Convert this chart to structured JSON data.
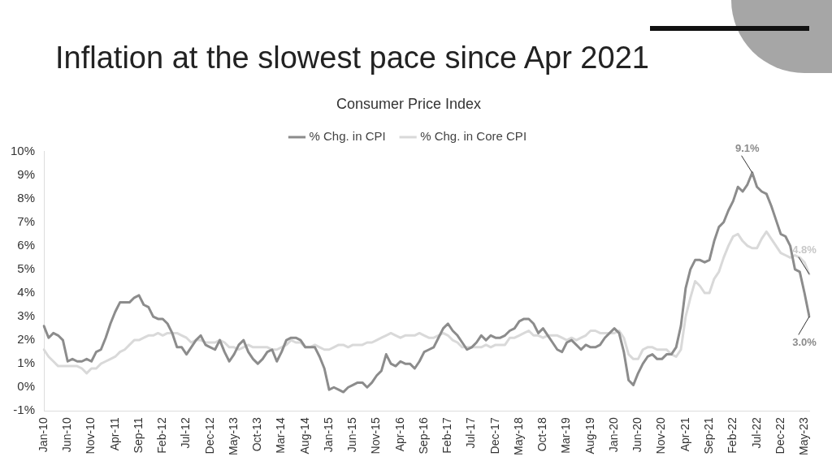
{
  "chart_data": {
    "type": "line",
    "title": "Inflation at the slowest pace since Apr 2021",
    "subtitle": "Consumer Price Index",
    "categories": [
      "Jan-10",
      null,
      null,
      null,
      null,
      "Jun-10",
      null,
      null,
      null,
      null,
      "Nov-10",
      null,
      null,
      null,
      null,
      "Apr-11",
      null,
      null,
      null,
      null,
      "Sep-11",
      null,
      null,
      null,
      null,
      "Feb-12",
      null,
      null,
      null,
      null,
      "Jul-12",
      null,
      null,
      null,
      null,
      "Dec-12",
      null,
      null,
      null,
      null,
      "May-13",
      null,
      null,
      null,
      null,
      "Oct-13",
      null,
      null,
      null,
      null,
      "Mar-14",
      null,
      null,
      null,
      null,
      "Aug-14",
      null,
      null,
      null,
      null,
      "Jan-15",
      null,
      null,
      null,
      null,
      "Jun-15",
      null,
      null,
      null,
      null,
      "Nov-15",
      null,
      null,
      null,
      null,
      "Apr-16",
      null,
      null,
      null,
      null,
      "Sep-16",
      null,
      null,
      null,
      null,
      "Feb-17",
      null,
      null,
      null,
      null,
      "Jul-17",
      null,
      null,
      null,
      null,
      "Dec-17",
      null,
      null,
      null,
      null,
      "May-18",
      null,
      null,
      null,
      null,
      "Oct-18",
      null,
      null,
      null,
      null,
      "Mar-19",
      null,
      null,
      null,
      null,
      "Aug-19",
      null,
      null,
      null,
      null,
      "Jan-20",
      null,
      null,
      null,
      null,
      "Jun-20",
      null,
      null,
      null,
      null,
      "Nov-20",
      null,
      null,
      null,
      null,
      "Apr-21",
      null,
      null,
      null,
      null,
      "Sep-21",
      null,
      null,
      null,
      null,
      "Feb-22",
      null,
      null,
      null,
      null,
      "Jul-22",
      null,
      null,
      null,
      null,
      "Dec-22",
      null,
      null,
      null,
      null,
      "May-23",
      null
    ],
    "series": [
      {
        "name": "% Chg. in CPI",
        "color": "#8c8c8c",
        "values": [
          2.6,
          2.1,
          2.3,
          2.2,
          2.0,
          1.1,
          1.2,
          1.1,
          1.1,
          1.2,
          1.1,
          1.5,
          1.6,
          2.1,
          2.7,
          3.2,
          3.6,
          3.6,
          3.6,
          3.8,
          3.9,
          3.5,
          3.4,
          3.0,
          2.9,
          2.9,
          2.7,
          2.3,
          1.7,
          1.7,
          1.4,
          1.7,
          2.0,
          2.2,
          1.8,
          1.7,
          1.6,
          2.0,
          1.5,
          1.1,
          1.4,
          1.8,
          2.0,
          1.5,
          1.2,
          1.0,
          1.2,
          1.5,
          1.6,
          1.1,
          1.5,
          2.0,
          2.1,
          2.1,
          2.0,
          1.7,
          1.7,
          1.7,
          1.3,
          0.8,
          -0.1,
          0.0,
          -0.1,
          -0.2,
          0.0,
          0.1,
          0.2,
          0.2,
          0.0,
          0.2,
          0.5,
          0.7,
          1.4,
          1.0,
          0.9,
          1.1,
          1.0,
          1.0,
          0.8,
          1.1,
          1.5,
          1.6,
          1.7,
          2.1,
          2.5,
          2.7,
          2.4,
          2.2,
          1.9,
          1.6,
          1.7,
          1.9,
          2.2,
          2.0,
          2.2,
          2.1,
          2.1,
          2.2,
          2.4,
          2.5,
          2.8,
          2.9,
          2.9,
          2.7,
          2.3,
          2.5,
          2.2,
          1.9,
          1.6,
          1.5,
          1.9,
          2.0,
          1.8,
          1.6,
          1.8,
          1.7,
          1.7,
          1.8,
          2.1,
          2.3,
          2.5,
          2.3,
          1.5,
          0.3,
          0.1,
          0.6,
          1.0,
          1.3,
          1.4,
          1.2,
          1.2,
          1.4,
          1.4,
          1.7,
          2.6,
          4.2,
          5.0,
          5.4,
          5.4,
          5.3,
          5.4,
          6.2,
          6.8,
          7.0,
          7.5,
          7.9,
          8.5,
          8.3,
          8.6,
          9.1,
          8.5,
          8.3,
          8.2,
          7.7,
          7.1,
          6.5,
          6.4,
          6.0,
          5.0,
          4.9,
          4.0,
          3.0
        ],
        "value_labels": [
          null,
          null,
          null,
          null,
          null,
          null,
          null,
          null,
          null,
          null,
          null,
          null,
          null,
          null,
          null,
          null,
          null,
          null,
          null,
          null,
          null,
          null,
          null,
          null,
          null,
          null,
          null,
          null,
          null,
          null,
          null,
          null,
          null,
          null,
          null,
          null,
          null,
          null,
          null,
          null,
          null,
          null,
          null,
          null,
          null,
          null,
          null,
          null,
          null,
          null,
          null,
          null,
          null,
          null,
          null,
          null,
          null,
          null,
          null,
          null,
          null,
          null,
          null,
          null,
          null,
          null,
          null,
          null,
          null,
          null,
          null,
          null,
          null,
          null,
          null,
          null,
          null,
          null,
          null,
          null,
          null,
          null,
          null,
          null,
          null,
          null,
          null,
          null,
          null,
          null,
          null,
          null,
          null,
          null,
          null,
          null,
          null,
          null,
          null,
          null,
          null,
          null,
          null,
          null,
          null,
          null,
          null,
          null,
          null,
          null,
          null,
          null,
          null,
          null,
          null,
          null,
          null,
          null,
          null,
          null,
          null,
          null,
          null,
          null,
          null,
          null,
          null,
          null,
          null,
          null,
          null,
          null,
          null,
          null,
          null,
          null,
          null,
          null,
          null,
          null,
          null,
          null,
          null,
          null,
          null,
          null,
          null,
          null,
          null,
          "9.1%",
          null,
          null,
          null,
          null,
          null,
          null,
          null,
          null,
          null,
          null,
          null,
          "3.0%"
        ]
      },
      {
        "name": "% Chg. in Core CPI",
        "color": "#d9d9d9",
        "values": [
          1.6,
          1.3,
          1.1,
          0.9,
          0.9,
          0.9,
          0.9,
          0.9,
          0.8,
          0.6,
          0.8,
          0.8,
          1.0,
          1.1,
          1.2,
          1.3,
          1.5,
          1.6,
          1.8,
          2.0,
          2.0,
          2.1,
          2.2,
          2.2,
          2.3,
          2.2,
          2.3,
          2.3,
          2.3,
          2.2,
          2.1,
          1.9,
          2.0,
          2.0,
          1.9,
          1.9,
          1.9,
          2.0,
          1.9,
          1.7,
          1.7,
          1.6,
          1.7,
          1.8,
          1.7,
          1.7,
          1.7,
          1.7,
          1.6,
          1.6,
          1.7,
          1.8,
          2.0,
          1.9,
          1.9,
          1.7,
          1.7,
          1.8,
          1.7,
          1.6,
          1.6,
          1.7,
          1.8,
          1.8,
          1.7,
          1.8,
          1.8,
          1.8,
          1.9,
          1.9,
          2.0,
          2.1,
          2.2,
          2.3,
          2.2,
          2.1,
          2.2,
          2.2,
          2.2,
          2.3,
          2.2,
          2.1,
          2.1,
          2.2,
          2.3,
          2.2,
          2.0,
          1.9,
          1.7,
          1.7,
          1.7,
          1.7,
          1.7,
          1.8,
          1.7,
          1.8,
          1.8,
          1.8,
          2.1,
          2.1,
          2.2,
          2.3,
          2.4,
          2.2,
          2.2,
          2.1,
          2.2,
          2.2,
          2.2,
          2.1,
          2.0,
          2.1,
          2.0,
          2.1,
          2.2,
          2.4,
          2.4,
          2.3,
          2.3,
          2.3,
          2.3,
          2.4,
          2.1,
          1.4,
          1.2,
          1.2,
          1.6,
          1.7,
          1.7,
          1.6,
          1.6,
          1.6,
          1.4,
          1.3,
          1.6,
          3.0,
          3.8,
          4.5,
          4.3,
          4.0,
          4.0,
          4.6,
          4.9,
          5.5,
          6.0,
          6.4,
          6.5,
          6.2,
          6.0,
          5.9,
          5.9,
          6.3,
          6.6,
          6.3,
          6.0,
          5.7,
          5.6,
          5.5,
          5.6,
          5.5,
          5.3,
          4.8
        ],
        "value_labels": [
          null,
          null,
          null,
          null,
          null,
          null,
          null,
          null,
          null,
          null,
          null,
          null,
          null,
          null,
          null,
          null,
          null,
          null,
          null,
          null,
          null,
          null,
          null,
          null,
          null,
          null,
          null,
          null,
          null,
          null,
          null,
          null,
          null,
          null,
          null,
          null,
          null,
          null,
          null,
          null,
          null,
          null,
          null,
          null,
          null,
          null,
          null,
          null,
          null,
          null,
          null,
          null,
          null,
          null,
          null,
          null,
          null,
          null,
          null,
          null,
          null,
          null,
          null,
          null,
          null,
          null,
          null,
          null,
          null,
          null,
          null,
          null,
          null,
          null,
          null,
          null,
          null,
          null,
          null,
          null,
          null,
          null,
          null,
          null,
          null,
          null,
          null,
          null,
          null,
          null,
          null,
          null,
          null,
          null,
          null,
          null,
          null,
          null,
          null,
          null,
          null,
          null,
          null,
          null,
          null,
          null,
          null,
          null,
          null,
          null,
          null,
          null,
          null,
          null,
          null,
          null,
          null,
          null,
          null,
          null,
          null,
          null,
          null,
          null,
          null,
          null,
          null,
          null,
          null,
          null,
          null,
          null,
          null,
          null,
          null,
          null,
          null,
          null,
          null,
          null,
          null,
          null,
          null,
          null,
          null,
          null,
          null,
          null,
          null,
          null,
          null,
          null,
          null,
          null,
          null,
          null,
          null,
          null,
          null,
          null,
          null,
          "4.8%"
        ]
      }
    ],
    "ylim": [
      -1,
      10
    ],
    "yticks": [
      {
        "value": -1,
        "label": "-1%"
      },
      {
        "value": 0,
        "label": "0%"
      },
      {
        "value": 1,
        "label": "1%"
      },
      {
        "value": 2,
        "label": "2%"
      },
      {
        "value": 3,
        "label": "3%"
      },
      {
        "value": 4,
        "label": "4%"
      },
      {
        "value": 5,
        "label": "5%"
      },
      {
        "value": 6,
        "label": "6%"
      },
      {
        "value": 7,
        "label": "7%"
      },
      {
        "value": 8,
        "label": "8%"
      },
      {
        "value": 9,
        "label": "9%"
      },
      {
        "value": 10,
        "label": "10%"
      }
    ],
    "grid": false,
    "legend": "top",
    "marker": "none",
    "line_style": "solid"
  }
}
